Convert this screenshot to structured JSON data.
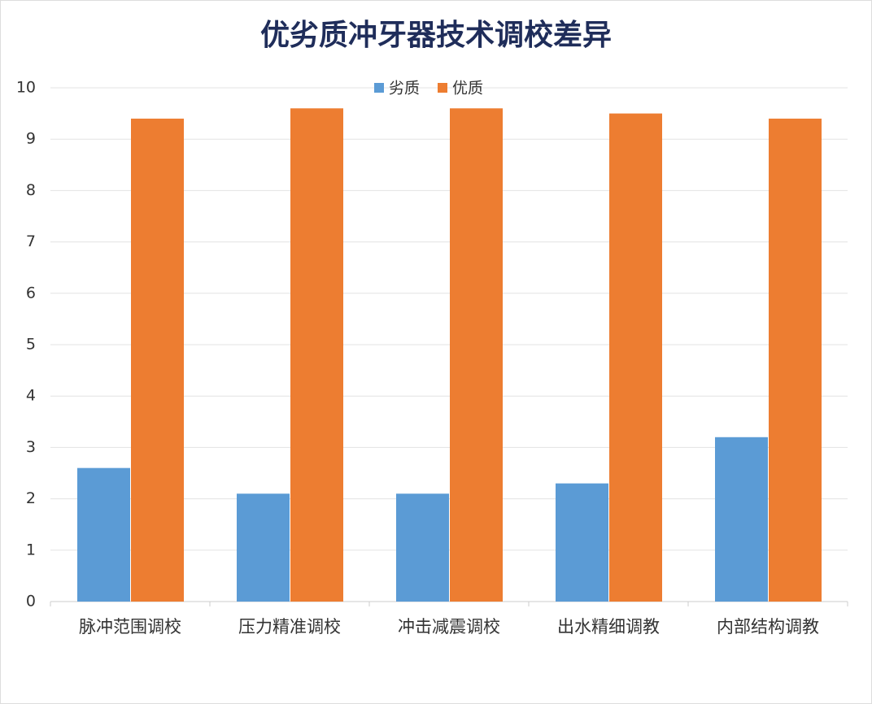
{
  "chart_data": {
    "type": "bar",
    "title": "优劣质冲牙器技术调校差异",
    "categories": [
      "脉冲范围调校",
      "压力精准调校",
      "冲击减震调校",
      "出水精细调教",
      "内部结构调教"
    ],
    "series": [
      {
        "name": "劣质",
        "color": "#5b9bd5",
        "values": [
          2.6,
          2.1,
          2.1,
          2.3,
          3.2
        ]
      },
      {
        "name": "优质",
        "color": "#ed7d31",
        "values": [
          9.4,
          9.6,
          9.6,
          9.5,
          9.4
        ]
      }
    ],
    "ylim": [
      0,
      10
    ],
    "yticks": [
      0,
      1,
      2,
      3,
      4,
      5,
      6,
      7,
      8,
      9,
      10
    ],
    "grid": true,
    "legend": "top"
  }
}
